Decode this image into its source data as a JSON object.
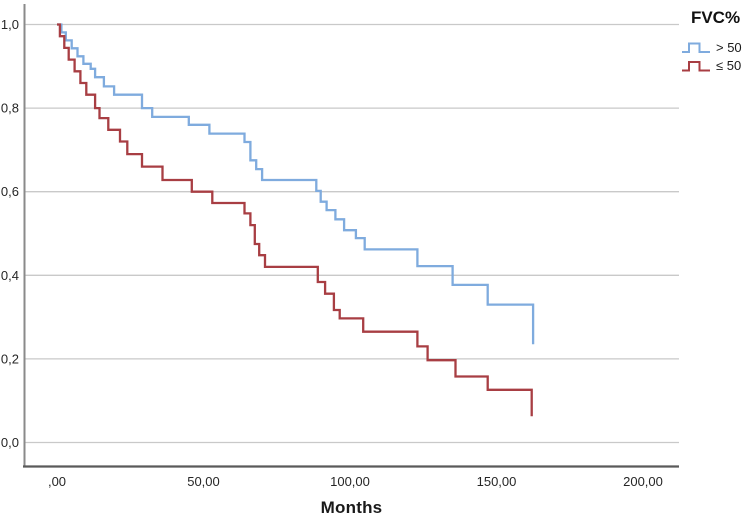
{
  "legend": {
    "title": "FVC%",
    "entries": [
      {
        "label": "> 50"
      },
      {
        "label": "≤ 50"
      }
    ]
  },
  "chart_data": {
    "type": "line",
    "subtype": "kaplan-meier-step",
    "title": "",
    "xlabel": "Months",
    "ylabel": "",
    "xlim": [
      -11,
      212
    ],
    "ylim": [
      0.0,
      1.0
    ],
    "grid": "horizontal",
    "legend_position": "top-right-outside",
    "colors": {
      "gridline": "#c9c9c9",
      "y_axis": "#8a8a8a",
      "x_axis": "#5a5a5a",
      "text": "#262626"
    },
    "x_ticks": [
      {
        "value": 0,
        "label": ",00"
      },
      {
        "value": 50,
        "label": "50,00"
      },
      {
        "value": 100,
        "label": "100,00"
      },
      {
        "value": 150,
        "label": "150,00"
      },
      {
        "value": 200,
        "label": "200,00"
      }
    ],
    "y_ticks": [
      {
        "value": 0.0,
        "label": "0,0"
      },
      {
        "value": 0.2,
        "label": "0,2"
      },
      {
        "value": 0.4,
        "label": "0,4"
      },
      {
        "value": 0.6,
        "label": "0,6"
      },
      {
        "value": 0.8,
        "label": "0,8"
      },
      {
        "value": 1.0,
        "label": "1,0"
      }
    ],
    "series": [
      {
        "name": "> 50",
        "color": "#7fabde",
        "points": [
          [
            0,
            1.0
          ],
          [
            1.5,
            0.981
          ],
          [
            3,
            0.962
          ],
          [
            5,
            0.943
          ],
          [
            7,
            0.924
          ],
          [
            9,
            0.906
          ],
          [
            11.5,
            0.894
          ],
          [
            13,
            0.874
          ],
          [
            16,
            0.852
          ],
          [
            19.5,
            0.832
          ],
          [
            29,
            0.8
          ],
          [
            32.5,
            0.779
          ],
          [
            45,
            0.76
          ],
          [
            52,
            0.739
          ],
          [
            64,
            0.719
          ],
          [
            66,
            0.675
          ],
          [
            68,
            0.654
          ],
          [
            70,
            0.628
          ],
          [
            88.5,
            0.602
          ],
          [
            90,
            0.576
          ],
          [
            92,
            0.556
          ],
          [
            95,
            0.534
          ],
          [
            98,
            0.508
          ],
          [
            102,
            0.489
          ],
          [
            105,
            0.462
          ],
          [
            123,
            0.422
          ],
          [
            135,
            0.377
          ],
          [
            147,
            0.33
          ],
          [
            162.5,
            0.235
          ]
        ]
      },
      {
        "name": "≤ 50",
        "color": "#a83e43",
        "points": [
          [
            0,
            1.0
          ],
          [
            1,
            0.972
          ],
          [
            2.5,
            0.944
          ],
          [
            4,
            0.916
          ],
          [
            6,
            0.888
          ],
          [
            8,
            0.86
          ],
          [
            10,
            0.832
          ],
          [
            13,
            0.8
          ],
          [
            14.5,
            0.776
          ],
          [
            17.5,
            0.748
          ],
          [
            21.5,
            0.72
          ],
          [
            24,
            0.69
          ],
          [
            29,
            0.66
          ],
          [
            36,
            0.628
          ],
          [
            46,
            0.6
          ],
          [
            53,
            0.573
          ],
          [
            64,
            0.548
          ],
          [
            66,
            0.52
          ],
          [
            67.5,
            0.475
          ],
          [
            69,
            0.448
          ],
          [
            71,
            0.42
          ],
          [
            89,
            0.384
          ],
          [
            91.5,
            0.356
          ],
          [
            94.5,
            0.317
          ],
          [
            96.5,
            0.297
          ],
          [
            104.5,
            0.265
          ],
          [
            123,
            0.23
          ],
          [
            126.5,
            0.197
          ],
          [
            136,
            0.158
          ],
          [
            147,
            0.126
          ],
          [
            162,
            0.063
          ]
        ]
      }
    ]
  }
}
